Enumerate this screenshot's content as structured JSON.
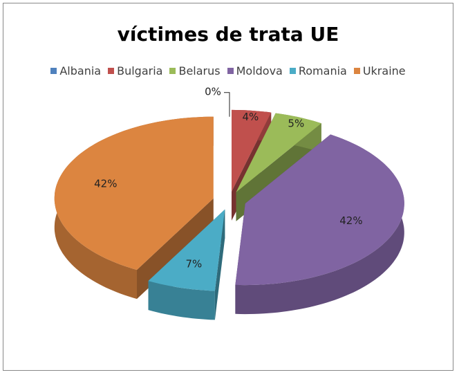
{
  "chart_data": {
    "type": "pie3d",
    "title": "víctimes de trata UE",
    "categories": [
      "Albania",
      "Bulgaria",
      "Belarus",
      "Moldova",
      "Romania",
      "Ukraine"
    ],
    "values": [
      0,
      4,
      5,
      42,
      7,
      42
    ],
    "value_labels": [
      "0%",
      "4%",
      "5%",
      "42%",
      "7%",
      "42%"
    ],
    "colors": [
      "#4f81bd",
      "#c0504d",
      "#9bbb59",
      "#8064a2",
      "#4bacc6",
      "#dc8540"
    ],
    "legend": "top"
  }
}
